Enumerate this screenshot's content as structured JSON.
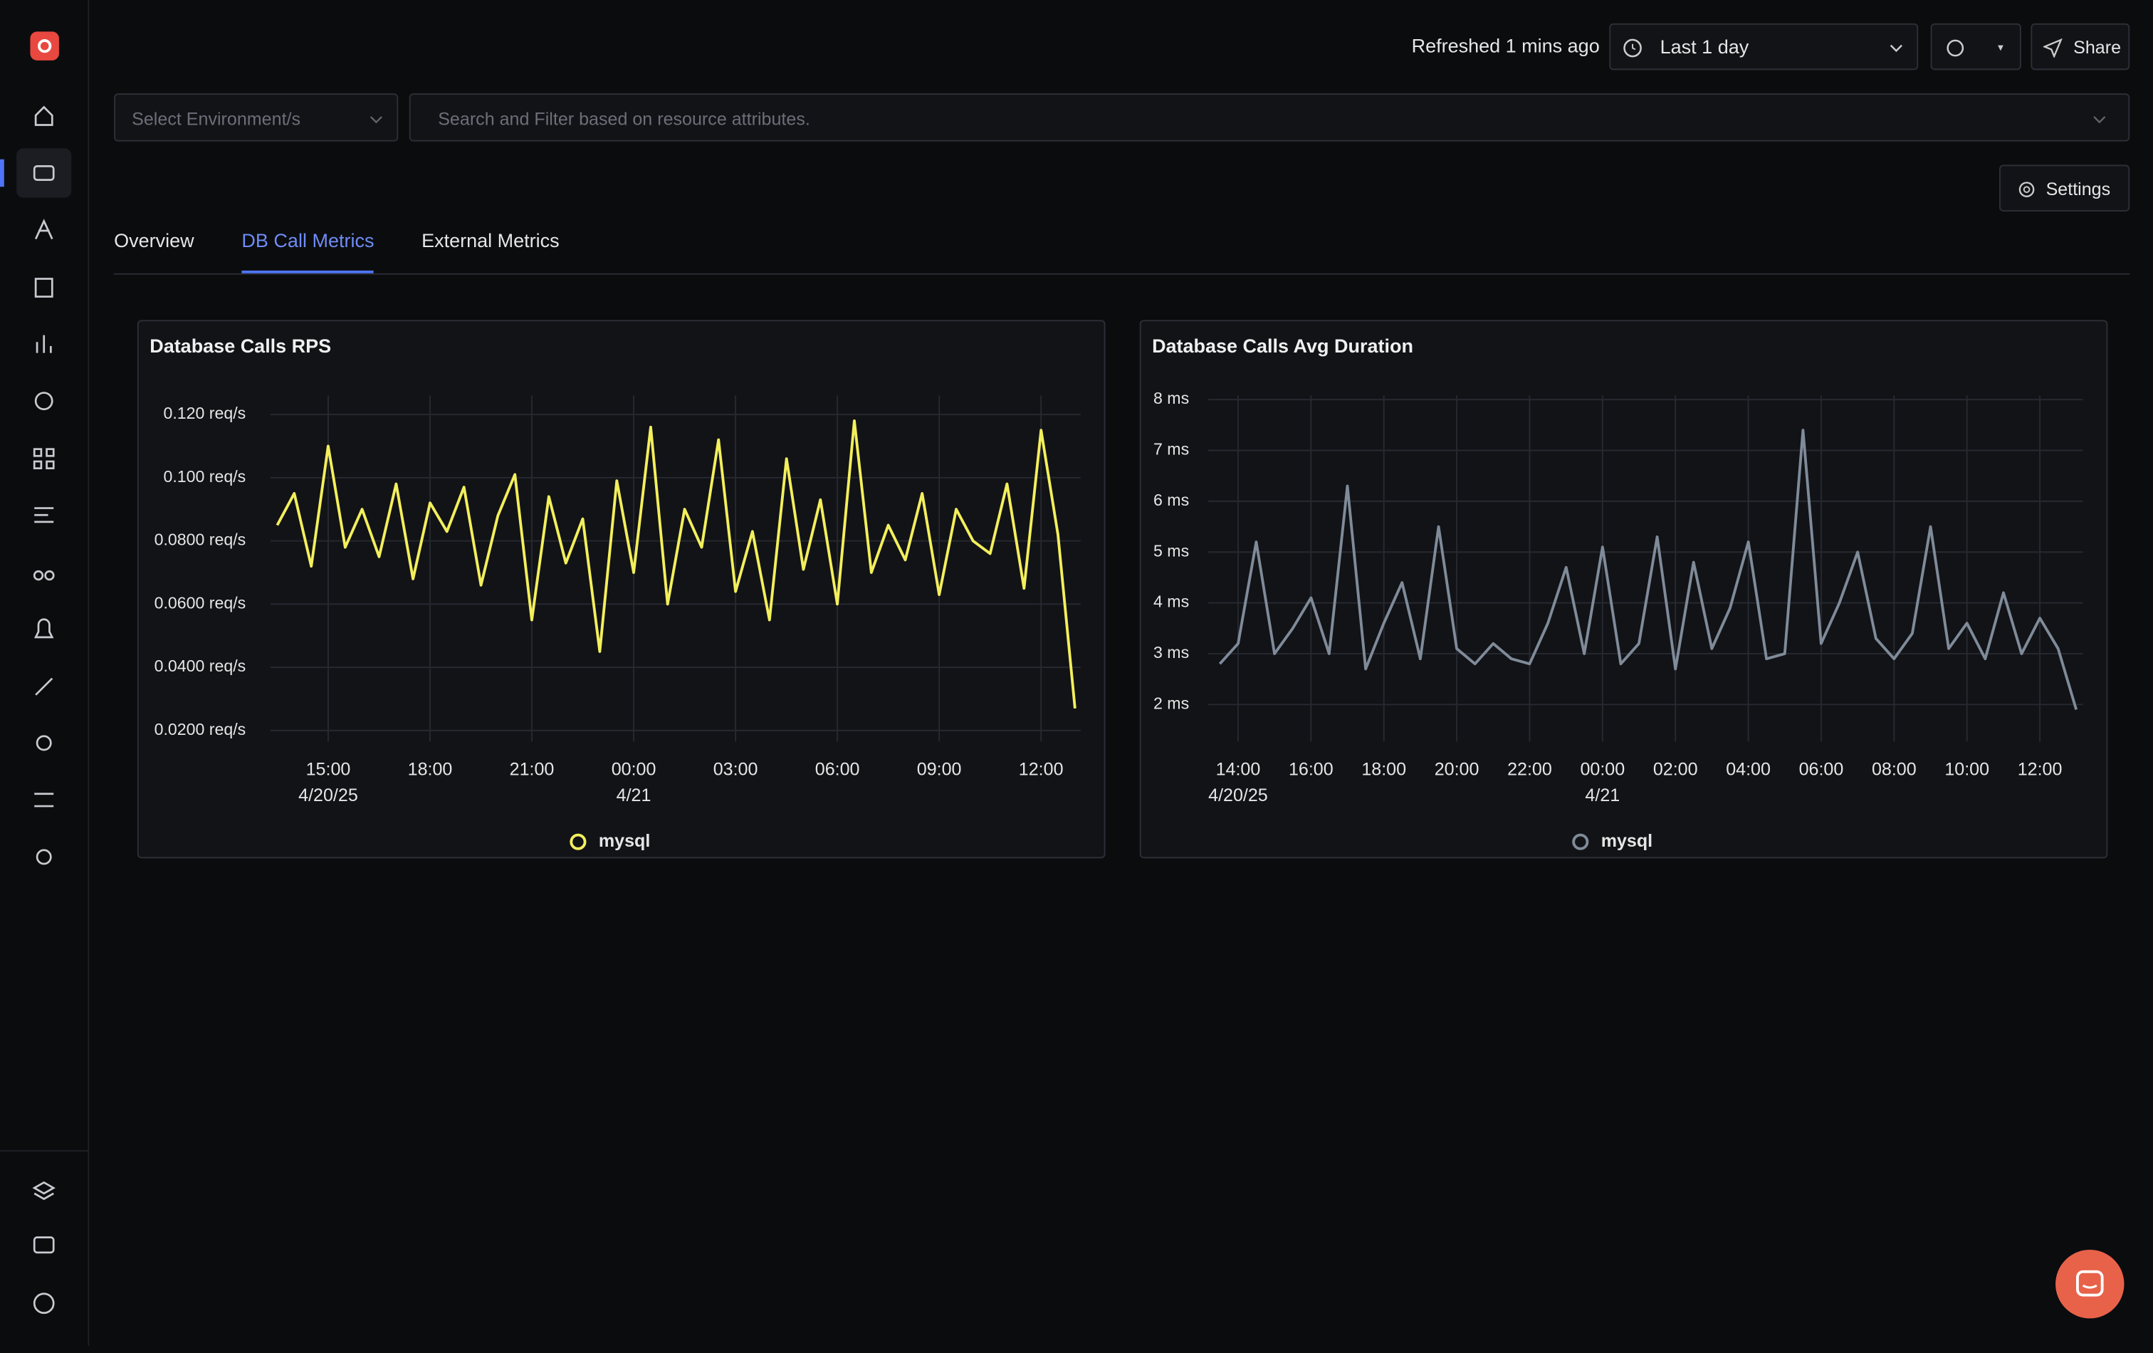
{
  "header": {
    "refreshed": "Refreshed 1 mins ago",
    "time_range": "Last 1 day",
    "share": "Share"
  },
  "filters": {
    "environment": "Select Environment/s",
    "search": "Search and Filter based on resource attributes."
  },
  "settings": "Settings",
  "tabs": [
    "Overview",
    "DB Call Metrics",
    "External Metrics"
  ],
  "active_tab": 1,
  "chart_data": [
    {
      "type": "line",
      "title": "Database Calls RPS",
      "grid": true,
      "x": [
        "4/20/25 13:30",
        "4/20/25 14:00",
        "4/20/25 14:30",
        "4/20/25 15:00",
        "4/20/25 15:30",
        "4/20/25 16:00",
        "4/20/25 16:30",
        "4/20/25 17:00",
        "4/20/25 17:30",
        "4/20/25 18:00",
        "4/20/25 18:30",
        "4/20/25 19:00",
        "4/20/25 19:30",
        "4/20/25 20:00",
        "4/20/25 20:30",
        "4/20/25 21:00",
        "4/20/25 21:30",
        "4/20/25 22:00",
        "4/20/25 22:30",
        "4/20/25 23:00",
        "4/20/25 23:30",
        "4/21/25 00:00",
        "4/21/25 00:30",
        "4/21/25 01:00",
        "4/21/25 01:30",
        "4/21/25 02:00",
        "4/21/25 02:30",
        "4/21/25 03:00",
        "4/21/25 03:30",
        "4/21/25 04:00",
        "4/21/25 04:30",
        "4/21/25 05:00",
        "4/21/25 05:30",
        "4/21/25 06:00",
        "4/21/25 06:30",
        "4/21/25 07:00",
        "4/21/25 07:30",
        "4/21/25 08:00",
        "4/21/25 08:30",
        "4/21/25 09:00",
        "4/21/25 09:30",
        "4/21/25 10:00",
        "4/21/25 10:30",
        "4/21/25 11:00",
        "4/21/25 11:30",
        "4/21/25 12:00",
        "4/21/25 12:30",
        "4/21/25 13:00"
      ],
      "series": [
        {
          "name": "mysql",
          "color": "#f3ef5c",
          "values": [
            0.085,
            0.095,
            0.072,
            0.11,
            0.078,
            0.09,
            0.075,
            0.098,
            0.068,
            0.092,
            0.083,
            0.097,
            0.066,
            0.088,
            0.101,
            0.055,
            0.094,
            0.073,
            0.087,
            0.045,
            0.099,
            0.07,
            0.116,
            0.06,
            0.09,
            0.078,
            0.112,
            0.064,
            0.083,
            0.055,
            0.106,
            0.071,
            0.093,
            0.06,
            0.118,
            0.07,
            0.085,
            0.074,
            0.095,
            0.063,
            0.09,
            0.08,
            0.076,
            0.098,
            0.065,
            0.115,
            0.082,
            0.027
          ]
        }
      ],
      "xlim": [
        "4/20/25 13:18",
        "4/21/25 13:10"
      ],
      "xticks": [
        {
          "value": "4/20/25 15:00",
          "label": [
            "15:00",
            "4/20/25"
          ]
        },
        {
          "value": "4/20/25 18:00",
          "label": "18:00"
        },
        {
          "value": "4/20/25 21:00",
          "label": "21:00"
        },
        {
          "value": "4/21/25 00:00",
          "label": [
            "00:00",
            "4/21"
          ]
        },
        {
          "value": "4/21/25 03:00",
          "label": "03:00"
        },
        {
          "value": "4/21/25 06:00",
          "label": "06:00"
        },
        {
          "value": "4/21/25 09:00",
          "label": "09:00"
        },
        {
          "value": "4/21/25 12:00",
          "label": "12:00"
        }
      ],
      "ylim": [
        0.0165,
        0.126
      ],
      "yticks": [
        {
          "value": 0.02,
          "label": "0.0200 req/s"
        },
        {
          "value": 0.04,
          "label": "0.0400 req/s"
        },
        {
          "value": 0.06,
          "label": "0.0600 req/s"
        },
        {
          "value": 0.08,
          "label": "0.0800 req/s"
        },
        {
          "value": 0.1,
          "label": "0.100 req/s"
        },
        {
          "value": 0.12,
          "label": "0.120 req/s"
        }
      ]
    },
    {
      "type": "line",
      "title": "Database Calls Avg Duration",
      "grid": true,
      "x": [
        "4/20/25 13:30",
        "4/20/25 14:00",
        "4/20/25 14:30",
        "4/20/25 15:00",
        "4/20/25 15:30",
        "4/20/25 16:00",
        "4/20/25 16:30",
        "4/20/25 17:00",
        "4/20/25 17:30",
        "4/20/25 18:00",
        "4/20/25 18:30",
        "4/20/25 19:00",
        "4/20/25 19:30",
        "4/20/25 20:00",
        "4/20/25 20:30",
        "4/20/25 21:00",
        "4/20/25 21:30",
        "4/20/25 22:00",
        "4/20/25 22:30",
        "4/20/25 23:00",
        "4/20/25 23:30",
        "4/21/25 00:00",
        "4/21/25 00:30",
        "4/21/25 01:00",
        "4/21/25 01:30",
        "4/21/25 02:00",
        "4/21/25 02:30",
        "4/21/25 03:00",
        "4/21/25 03:30",
        "4/21/25 04:00",
        "4/21/25 04:30",
        "4/21/25 05:00",
        "4/21/25 05:30",
        "4/21/25 06:00",
        "4/21/25 06:30",
        "4/21/25 07:00",
        "4/21/25 07:30",
        "4/21/25 08:00",
        "4/21/25 08:30",
        "4/21/25 09:00",
        "4/21/25 09:30",
        "4/21/25 10:00",
        "4/21/25 10:30",
        "4/21/25 11:00",
        "4/21/25 11:30",
        "4/21/25 12:00",
        "4/21/25 12:30",
        "4/21/25 13:00"
      ],
      "series": [
        {
          "name": "mysql",
          "color": "#7f8b99",
          "values": [
            2.8,
            3.2,
            5.2,
            3.0,
            3.5,
            4.1,
            3.0,
            6.3,
            2.7,
            3.6,
            4.4,
            2.9,
            5.5,
            3.1,
            2.8,
            3.2,
            2.9,
            2.8,
            3.6,
            4.7,
            3.0,
            5.1,
            2.8,
            3.2,
            5.3,
            2.7,
            4.8,
            3.1,
            3.9,
            5.2,
            2.9,
            3.0,
            7.4,
            3.2,
            4.0,
            5.0,
            3.3,
            2.9,
            3.4,
            5.5,
            3.1,
            3.6,
            2.9,
            4.2,
            3.0,
            3.7,
            3.1,
            1.9
          ]
        }
      ],
      "xlim": [
        "4/20/25 13:11",
        "4/21/25 13:11"
      ],
      "xticks": [
        {
          "value": "4/20/25 14:00",
          "label": [
            "14:00",
            "4/20/25"
          ]
        },
        {
          "value": "4/20/25 16:00",
          "label": "16:00"
        },
        {
          "value": "4/20/25 18:00",
          "label": "18:00"
        },
        {
          "value": "4/20/25 20:00",
          "label": "20:00"
        },
        {
          "value": "4/20/25 22:00",
          "label": "22:00"
        },
        {
          "value": "4/21/25 00:00",
          "label": [
            "00:00",
            "4/21"
          ]
        },
        {
          "value": "4/21/25 02:00",
          "label": "02:00"
        },
        {
          "value": "4/21/25 04:00",
          "label": "04:00"
        },
        {
          "value": "4/21/25 06:00",
          "label": "06:00"
        },
        {
          "value": "4/21/25 08:00",
          "label": "08:00"
        },
        {
          "value": "4/21/25 10:00",
          "label": "10:00"
        },
        {
          "value": "4/21/25 12:00",
          "label": "12:00"
        }
      ],
      "ylim": [
        1.27,
        8.08
      ],
      "yticks": [
        {
          "value": 2,
          "label": "2 ms"
        },
        {
          "value": 3,
          "label": "3 ms"
        },
        {
          "value": 4,
          "label": "4 ms"
        },
        {
          "value": 5,
          "label": "5 ms"
        },
        {
          "value": 6,
          "label": "6 ms"
        },
        {
          "value": 7,
          "label": "7 ms"
        },
        {
          "value": 8,
          "label": "8 ms"
        }
      ]
    }
  ]
}
